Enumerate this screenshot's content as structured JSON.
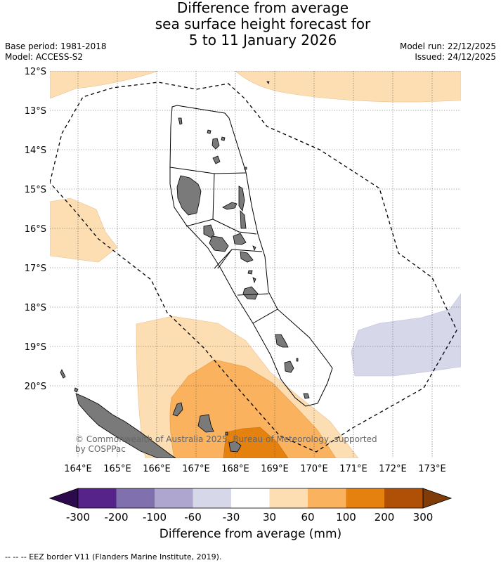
{
  "title": {
    "line1": "Difference from average",
    "line2": "sea surface height forecast for",
    "line3": "5 to 11 January 2026"
  },
  "meta_left": {
    "base_period": "Base period: 1981-2018",
    "model": "Model: ACCESS-S2"
  },
  "meta_right": {
    "model_run": "Model run: 22/12/2025",
    "issued": "Issued: 24/12/2025"
  },
  "lat_labels": [
    "12°S",
    "13°S",
    "14°S",
    "15°S",
    "16°S",
    "17°S",
    "18°S",
    "19°S",
    "20°S"
  ],
  "lon_labels": [
    "164°E",
    "165°E",
    "166°E",
    "167°E",
    "168°E",
    "169°E",
    "170°E",
    "171°E",
    "172°E",
    "173°E"
  ],
  "attribution": {
    "line1": "© Commonwealth of Australia 2025, Bureau of Meteorology, supported",
    "line2": "by COSPPac"
  },
  "colorbar": {
    "ticks": [
      "-300",
      "-200",
      "-100",
      "-60",
      "-30",
      "30",
      "60",
      "100",
      "200",
      "300"
    ],
    "colors": [
      "#2d0a4e",
      "#56238a",
      "#8070ae",
      "#aea6cf",
      "#d7d7ea",
      "#ffffff",
      "#fddeb3",
      "#fbb25f",
      "#e5820f",
      "#b05006",
      "#7f3b08"
    ],
    "label": "Difference from average (mm)"
  },
  "footnote": "--  --  -- EEZ border V11 (Flanders Marine Institute, 2019)."
}
